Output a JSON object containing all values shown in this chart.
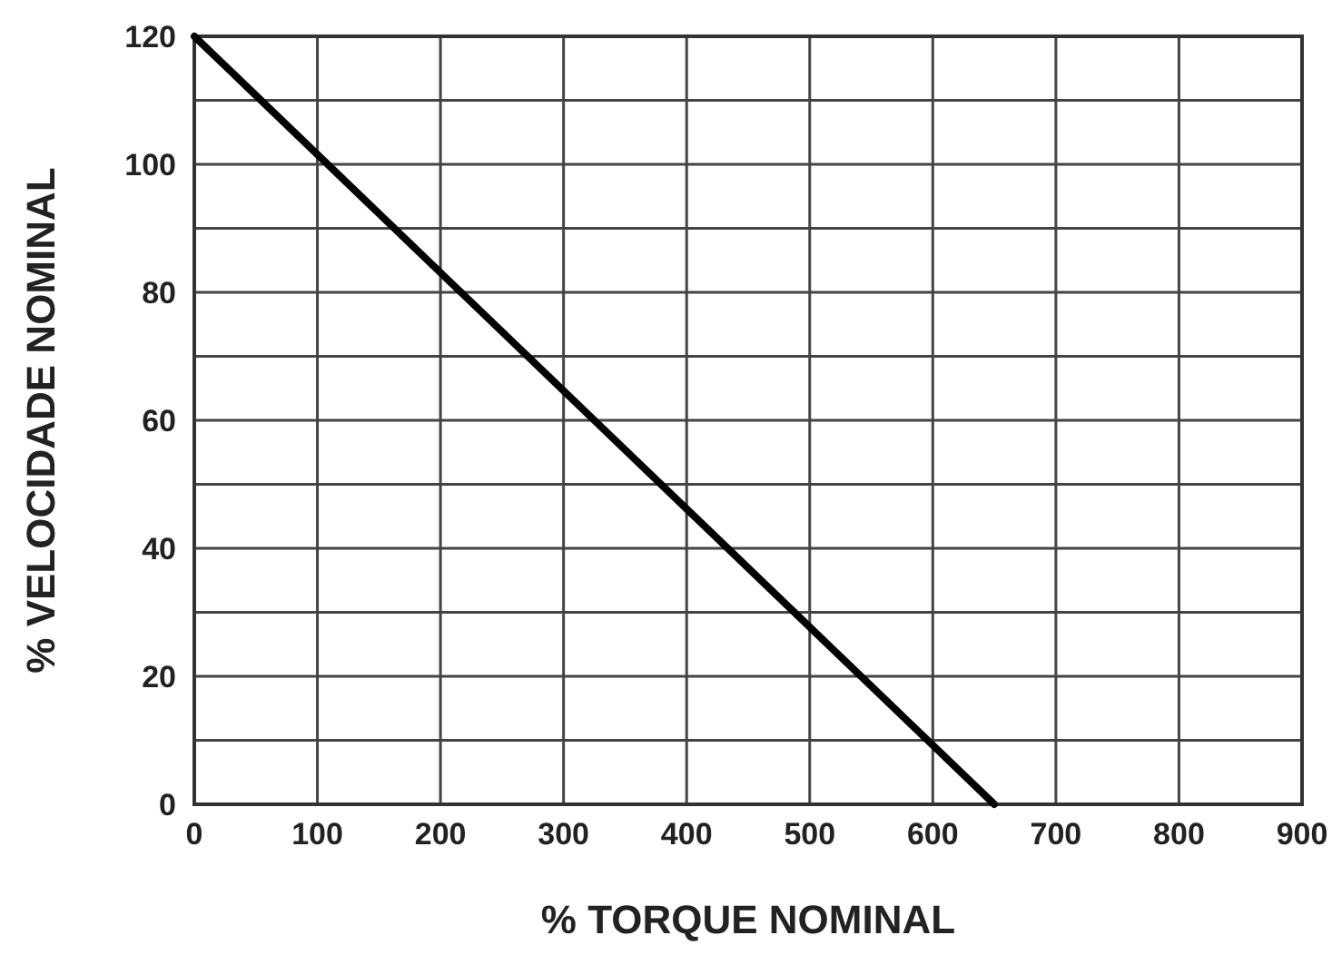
{
  "chart_data": {
    "type": "line",
    "xlabel": "% TORQUE NOMINAL",
    "ylabel": "% VELOCIDADE NOMINAL",
    "x": [
      0,
      650
    ],
    "series": [
      {
        "color": "#000000",
        "values": [
          120,
          0
        ]
      }
    ],
    "xlim": [
      0,
      900
    ],
    "xticks": [
      0,
      100,
      200,
      300,
      400,
      500,
      600,
      700,
      800,
      900
    ],
    "ylim": [
      0,
      120
    ],
    "yticks": [
      0,
      {
        "value": 10,
        "label": null
      },
      20,
      {
        "value": 30,
        "label": null
      },
      40,
      {
        "value": 50,
        "label": null
      },
      60,
      {
        "value": 70,
        "label": null
      },
      80,
      {
        "value": 90,
        "label": null
      },
      100,
      {
        "value": 110,
        "label": null
      },
      120
    ],
    "grid": true,
    "marker": "none",
    "line_style": "solid"
  }
}
